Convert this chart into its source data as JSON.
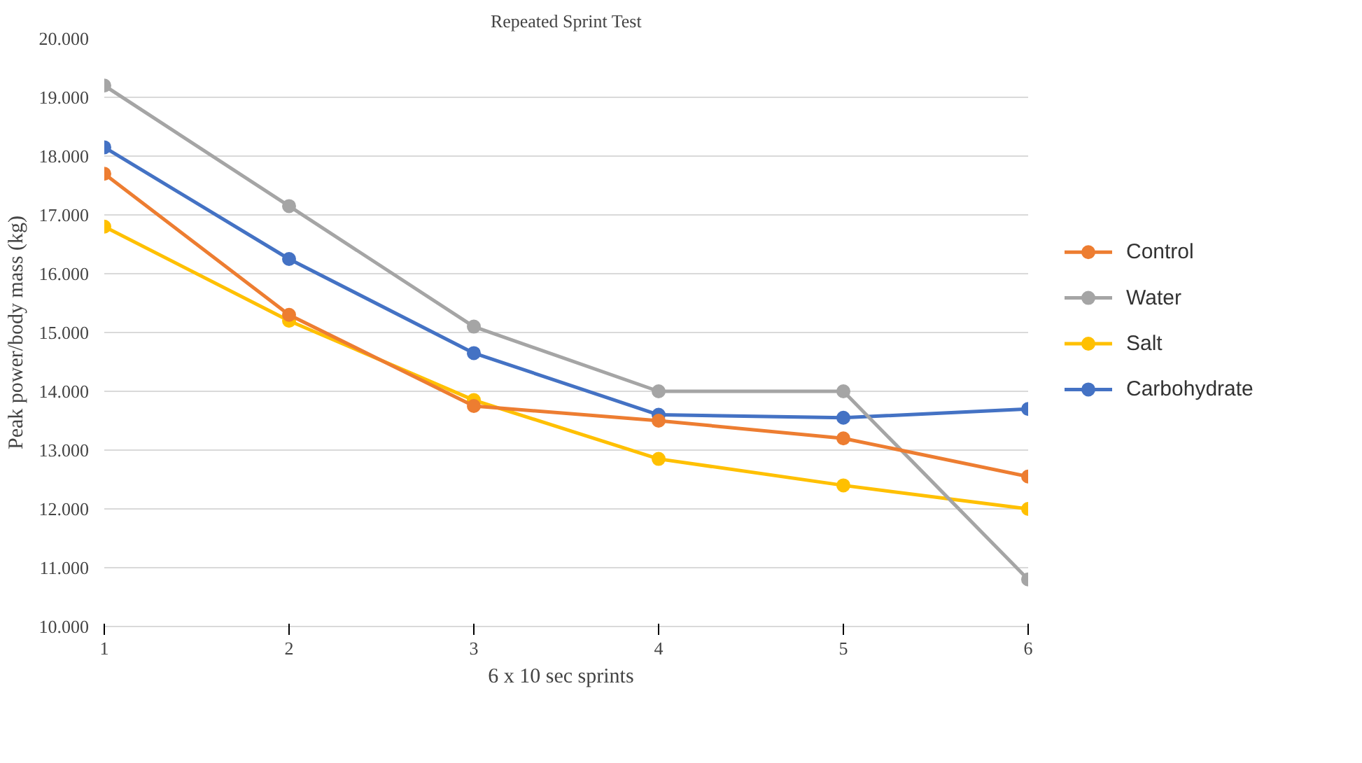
{
  "chart_data": {
    "type": "line",
    "title": "Repeated Sprint Test",
    "xlabel": "6 x  10  sec sprints",
    "ylabel": "Peak power/body mass (kg)",
    "x": [
      1,
      2,
      3,
      4,
      5,
      6
    ],
    "xlim": [
      1,
      6
    ],
    "xticks": [
      1,
      2,
      3,
      4,
      5,
      6
    ],
    "ylim": [
      10,
      20
    ],
    "yticks": [
      {
        "value": 10,
        "label": "10.000"
      },
      {
        "value": 11,
        "label": "11.000"
      },
      {
        "value": 12,
        "label": "12.000"
      },
      {
        "value": 13,
        "label": "13.000"
      },
      {
        "value": 14,
        "label": "14.000"
      },
      {
        "value": 15,
        "label": "15.000"
      },
      {
        "value": 16,
        "label": "16.000"
      },
      {
        "value": 17,
        "label": "17.000"
      },
      {
        "value": 18,
        "label": "18.000"
      },
      {
        "value": 19,
        "label": "19.000"
      },
      {
        "value": 20,
        "label": "20.000"
      }
    ],
    "grid": "y",
    "legend": "right",
    "marker": "circle",
    "line_style": "solid",
    "series": [
      {
        "name": "Control",
        "color": "#ed7d31",
        "values": [
          17.7,
          15.3,
          13.75,
          13.5,
          13.2,
          12.55
        ]
      },
      {
        "name": "Water",
        "color": "#a5a5a5",
        "values": [
          19.2,
          17.15,
          15.1,
          14.0,
          14.0,
          10.8
        ]
      },
      {
        "name": "Salt",
        "color": "#ffc000",
        "values": [
          16.8,
          15.2,
          13.85,
          12.85,
          12.4,
          12.0
        ]
      },
      {
        "name": "Carbohydrate",
        "color": "#4472c4",
        "values": [
          18.15,
          16.25,
          14.65,
          13.6,
          13.55,
          13.7
        ]
      }
    ]
  }
}
